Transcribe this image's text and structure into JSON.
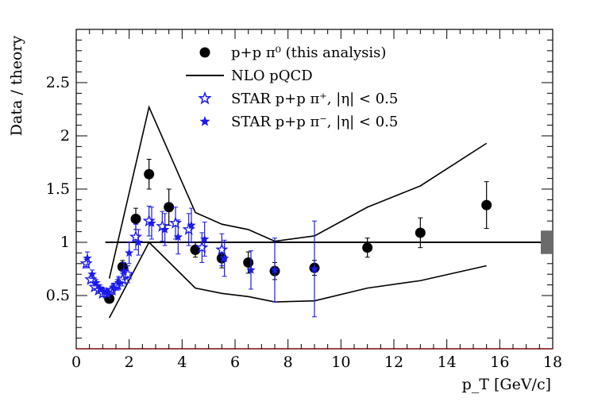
{
  "chart_data": {
    "type": "scatter",
    "title": "",
    "xlabel": "p_T [GeV/c]",
    "ylabel": "Data / theory",
    "xlim": [
      0,
      18
    ],
    "ylim": [
      0,
      3.0
    ],
    "x_ticks": [
      0,
      2,
      4,
      6,
      8,
      10,
      12,
      14,
      16,
      18
    ],
    "y_ticks": [
      0.5,
      1,
      1.5,
      2,
      2.5
    ],
    "x_tick_labels": [
      "0",
      "2",
      "4",
      "6",
      "8",
      "10",
      "12",
      "14",
      "16",
      "18"
    ],
    "y_tick_labels": [
      "0.5",
      "1",
      "1.5",
      "2",
      "2.5"
    ],
    "reference_line": {
      "y": 1.0,
      "x_from": 1.1,
      "x_to": 18
    },
    "normalization_box": {
      "x_from": 17.55,
      "x_to": 18.0,
      "y_low": 0.89,
      "y_high": 1.11
    },
    "legend": {
      "placement": "top-center",
      "entries": [
        {
          "label": "p+p π⁰ (this analysis)",
          "marker": "filled-circle",
          "color": "#000000"
        },
        {
          "label": "NLO pQCD",
          "marker": "line",
          "color": "#000000"
        },
        {
          "label": "STAR p+p π⁺, |η| < 0.5",
          "marker": "open-star",
          "color": "#1a1aee"
        },
        {
          "label": "STAR p+p π⁻, |η| < 0.5",
          "marker": "filled-star",
          "color": "#1a1aee"
        }
      ]
    },
    "series": [
      {
        "name": "p+p π⁰ (this analysis)",
        "marker": "filled-circle",
        "color": "#000000",
        "x": [
          1.25,
          1.75,
          2.25,
          2.75,
          3.5,
          4.5,
          5.5,
          6.5,
          7.5,
          9.0,
          11.0,
          13.0,
          15.5
        ],
        "y": [
          0.47,
          0.77,
          1.22,
          1.64,
          1.33,
          0.93,
          0.85,
          0.81,
          0.73,
          0.76,
          0.95,
          1.09,
          1.35
        ],
        "err": [
          0.03,
          0.06,
          0.1,
          0.14,
          0.17,
          0.07,
          0.09,
          0.1,
          0.08,
          0.07,
          0.09,
          0.14,
          0.22
        ]
      },
      {
        "name": "NLO pQCD upper",
        "marker": "line",
        "color": "#000000",
        "x": [
          1.25,
          2.75,
          4.5,
          5.5,
          6.5,
          7.5,
          9.0,
          11.0,
          13.0,
          15.5
        ],
        "y": [
          0.66,
          2.27,
          1.28,
          1.17,
          1.12,
          1.01,
          1.06,
          1.33,
          1.53,
          1.93
        ]
      },
      {
        "name": "NLO pQCD lower",
        "marker": "line",
        "color": "#000000",
        "x": [
          1.25,
          2.75,
          4.5,
          5.5,
          6.5,
          7.5,
          9.0,
          11.0,
          13.0,
          15.5
        ],
        "y": [
          0.29,
          1.0,
          0.57,
          0.52,
          0.49,
          0.44,
          0.45,
          0.57,
          0.64,
          0.78
        ]
      },
      {
        "name": "STAR p+p π⁺, |η| < 0.5",
        "marker": "open-star",
        "color": "#1a1aee",
        "x": [
          0.38,
          0.55,
          0.7,
          0.85,
          1.0,
          1.15,
          1.35,
          1.55,
          1.75,
          1.95,
          2.25,
          2.75,
          3.25,
          3.75,
          4.25,
          4.75,
          5.5
        ],
        "y": [
          0.8,
          0.65,
          0.58,
          0.55,
          0.52,
          0.52,
          0.55,
          0.6,
          0.65,
          0.7,
          1.05,
          1.2,
          1.15,
          1.18,
          1.12,
          0.95,
          0.93
        ],
        "err": [
          0.04,
          0.03,
          0.03,
          0.03,
          0.03,
          0.03,
          0.04,
          0.05,
          0.06,
          0.08,
          0.12,
          0.14,
          0.14,
          0.15,
          0.15,
          0.14,
          0.15
        ]
      },
      {
        "name": "STAR p+p π⁻, |η| < 0.5",
        "marker": "filled-star",
        "color": "#1a1aee",
        "x": [
          0.42,
          0.6,
          0.75,
          0.9,
          1.05,
          1.2,
          1.4,
          1.6,
          1.8,
          2.0,
          2.35,
          2.85,
          3.35,
          3.85,
          4.35,
          4.85,
          5.6,
          6.6,
          7.5,
          9.0
        ],
        "y": [
          0.85,
          0.7,
          0.62,
          0.57,
          0.54,
          0.53,
          0.57,
          0.62,
          0.73,
          0.9,
          1.0,
          1.18,
          1.12,
          1.05,
          1.16,
          1.03,
          0.85,
          0.74,
          0.74,
          0.75
        ],
        "err": [
          0.06,
          0.04,
          0.03,
          0.03,
          0.03,
          0.03,
          0.04,
          0.06,
          0.08,
          0.1,
          0.12,
          0.15,
          0.15,
          0.16,
          0.16,
          0.16,
          0.17,
          0.18,
          0.3,
          0.45
        ]
      }
    ]
  }
}
